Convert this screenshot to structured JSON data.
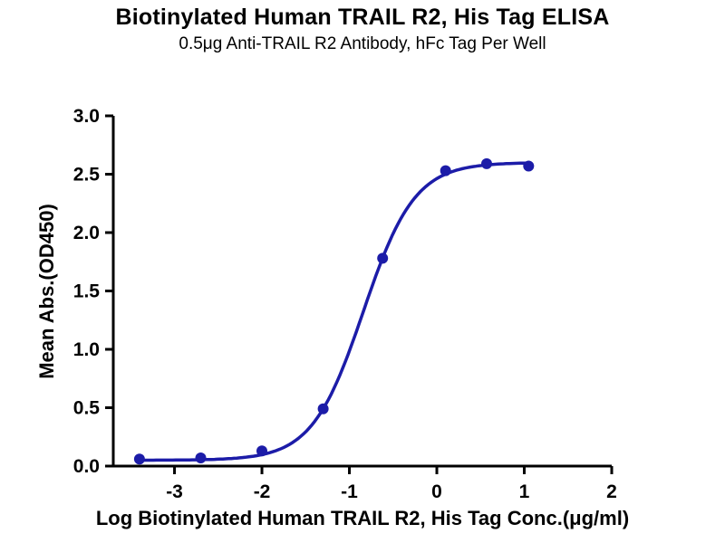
{
  "chart_data": {
    "type": "scatter",
    "title": "Biotinylated Human TRAIL R2, His Tag ELISA",
    "subtitle": "0.5μg Anti-TRAIL R2 Antibody, hFc Tag Per Well",
    "xlabel": "Log Biotinylated Human TRAIL R2, His Tag Conc.(μg/ml)",
    "ylabel": "Mean Abs.(OD450)",
    "x": [
      -3.4,
      -2.7,
      -2.0,
      -1.3,
      -0.62,
      0.1,
      0.57,
      1.05
    ],
    "y": [
      0.06,
      0.07,
      0.13,
      0.49,
      1.78,
      2.53,
      2.59,
      2.57
    ],
    "xlim": [
      -3.7,
      2.0
    ],
    "ylim": [
      0.0,
      3.0
    ],
    "xticks": [
      -3,
      -2,
      -1,
      0,
      1,
      2
    ],
    "yticks": [
      0.0,
      0.5,
      1.0,
      1.5,
      2.0,
      2.5,
      3.0
    ],
    "grid": false,
    "legend": null,
    "curve": "4PL sigmoidal fit",
    "fit_4pl": {
      "bottom": 0.05,
      "top": 2.6,
      "logec50": -0.84,
      "hill": 1.48
    },
    "color": "#1c1ca8",
    "axis_color": "#000000"
  }
}
